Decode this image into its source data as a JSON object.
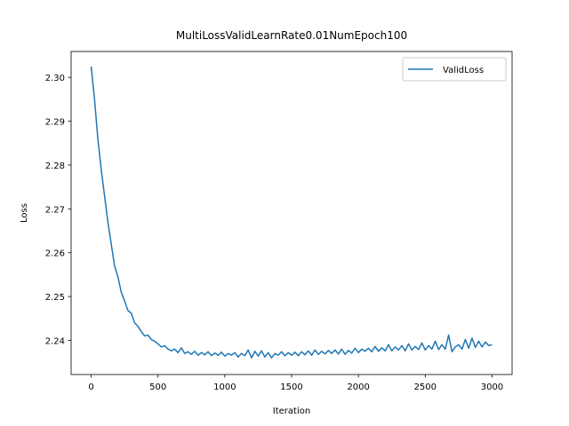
{
  "chart_data": {
    "type": "line",
    "title": "MultiLossValidLearnRate0.01NumEpoch100",
    "x_label": "Iteration",
    "y_label": "Loss",
    "x": [
      0,
      25,
      50,
      75,
      100,
      125,
      150,
      175,
      200,
      225,
      250,
      275,
      300,
      325,
      350,
      375,
      400,
      425,
      450,
      475,
      500,
      525,
      550,
      575,
      600,
      625,
      650,
      675,
      700,
      725,
      750,
      775,
      800,
      825,
      850,
      875,
      900,
      925,
      950,
      975,
      1000,
      1025,
      1050,
      1075,
      1100,
      1125,
      1150,
      1175,
      1200,
      1225,
      1250,
      1275,
      1300,
      1325,
      1350,
      1375,
      1400,
      1425,
      1450,
      1475,
      1500,
      1525,
      1550,
      1575,
      1600,
      1625,
      1650,
      1675,
      1700,
      1725,
      1750,
      1775,
      1800,
      1825,
      1850,
      1875,
      1900,
      1925,
      1950,
      1975,
      2000,
      2025,
      2050,
      2075,
      2100,
      2125,
      2150,
      2175,
      2200,
      2225,
      2250,
      2275,
      2300,
      2325,
      2350,
      2375,
      2400,
      2425,
      2450,
      2475,
      2500,
      2525,
      2550,
      2575,
      2600,
      2625,
      2650,
      2675,
      2700,
      2725,
      2750,
      2775,
      2800,
      2825,
      2850,
      2875,
      2900,
      2925,
      2950,
      2975,
      3000
    ],
    "series": [
      {
        "name": "ValidLoss",
        "color": "#1f77b4",
        "values": [
          2.3025,
          2.295,
          2.286,
          2.279,
          2.273,
          2.267,
          2.262,
          2.257,
          2.2545,
          2.251,
          2.249,
          2.2468,
          2.2462,
          2.244,
          2.2432,
          2.242,
          2.241,
          2.2412,
          2.2402,
          2.2398,
          2.2392,
          2.2385,
          2.2388,
          2.238,
          2.2376,
          2.238,
          2.2372,
          2.2383,
          2.237,
          2.2374,
          2.2368,
          2.2375,
          2.2366,
          2.2372,
          2.2367,
          2.2374,
          2.2365,
          2.2371,
          2.2366,
          2.2373,
          2.2364,
          2.237,
          2.2366,
          2.2372,
          2.2362,
          2.237,
          2.2365,
          2.2378,
          2.236,
          2.2375,
          2.2364,
          2.2376,
          2.2362,
          2.2372,
          2.236,
          2.237,
          2.2366,
          2.2374,
          2.2365,
          2.2372,
          2.2366,
          2.2373,
          2.2365,
          2.2374,
          2.2367,
          2.2376,
          2.2366,
          2.2378,
          2.2368,
          2.2375,
          2.2369,
          2.2377,
          2.237,
          2.2378,
          2.2369,
          2.238,
          2.2368,
          2.2377,
          2.2371,
          2.2382,
          2.2372,
          2.238,
          2.2375,
          2.2382,
          2.2374,
          2.2386,
          2.2375,
          2.2383,
          2.2376,
          2.239,
          2.2376,
          2.2385,
          2.2378,
          2.2388,
          2.2376,
          2.2392,
          2.2378,
          2.2386,
          2.2379,
          2.2394,
          2.2378,
          2.2388,
          2.238,
          2.2398,
          2.2379,
          2.239,
          2.238,
          2.2412,
          2.2374,
          2.2385,
          2.239,
          2.238,
          2.2402,
          2.2382,
          2.2405,
          2.2384,
          2.2398,
          2.2385,
          2.2396,
          2.2388,
          2.239
        ]
      }
    ],
    "xlim": [
      -150,
      3150
    ],
    "ylim": [
      2.2322,
      2.3059
    ],
    "xticks": [
      0,
      500,
      1000,
      1500,
      2000,
      2500,
      3000
    ],
    "yticks": [
      2.24,
      2.25,
      2.26,
      2.27,
      2.28,
      2.29,
      {
        "value": 2.3,
        "label": "2.30"
      }
    ],
    "legend": "upper right",
    "grid": false
  }
}
